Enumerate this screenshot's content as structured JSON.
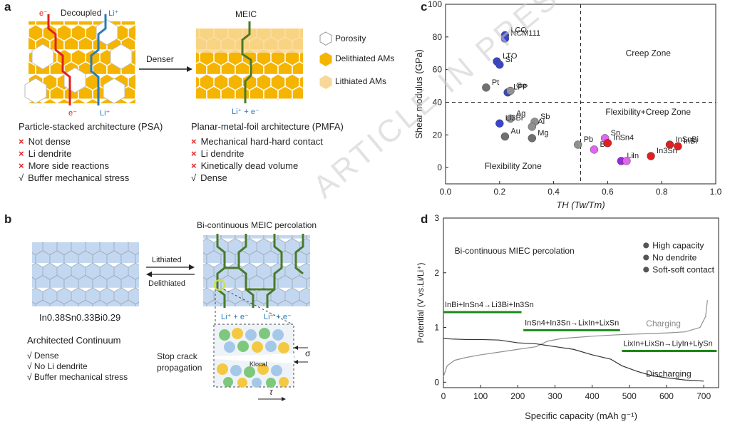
{
  "watermark": "ARTICLE IN PRESS",
  "panel_a": {
    "label": "a",
    "decoupled": "Decoupled",
    "e_top": "e⁻",
    "li_top": "Li⁺",
    "e_bottom": "e⁻",
    "li_bottom": "Li⁺",
    "arrow": "Denser",
    "meic": "MEIC",
    "bottom_flow": "Li⁺ + e⁻",
    "legend": [
      "Porosity",
      "Delithiated AMs",
      "Lithiated AMs"
    ],
    "psa_title": "Particle-stacked architecture (PSA)",
    "psa_items": [
      {
        "mark": "×",
        "text": "Not dense"
      },
      {
        "mark": "×",
        "text": "Li dendrite"
      },
      {
        "mark": "×",
        "text": "More side reactions"
      },
      {
        "mark": "√",
        "text": "Buffer mechanical stress"
      }
    ],
    "pmfa_title": "Planar-metal-foil architecture (PMFA)",
    "pmfa_items": [
      {
        "mark": "×",
        "text": "Mechanical hard-hard contact"
      },
      {
        "mark": "×",
        "text": "Li dendrite"
      },
      {
        "mark": "×",
        "text": "Kinetically dead volume"
      },
      {
        "mark": "√",
        "text": "Dense"
      }
    ]
  },
  "panel_b": {
    "label": "b",
    "formula": "In0.38Sn0.33Bi0.29",
    "lithiated": "Lithiated",
    "delithiated": "Delithiated",
    "percolation": "Bi-continuous MEIC percolation",
    "flow1": "Li⁺ + e⁻",
    "flow2": "Li⁺ + e⁻",
    "arch_title": "Architected Continuum",
    "items": [
      "√ Dense",
      "√ No Li dendrite",
      "√ Buffer mechanical stress"
    ],
    "stop_crack": "Stop crack propagation",
    "sigma": "σ",
    "tau": "τ",
    "klocal": "Klocal"
  },
  "panel_c": {
    "label": "c",
    "chart_data": {
      "type": "scatter",
      "xlabel": "TH (Tw/Tm)",
      "ylabel": "Shear modulus (GPa)",
      "xlim": [
        0.0,
        1.0
      ],
      "ylim": [
        -10,
        100
      ],
      "xticks": [
        "0.0",
        "0.2",
        "0.4",
        "0.6",
        "0.8",
        "1.0"
      ],
      "yticks": [
        "0",
        "20",
        "40",
        "60",
        "80",
        "100"
      ],
      "vline": 0.5,
      "hline": 40,
      "zones": [
        "Creep Zone",
        "Flexibility+Creep Zone",
        "Flexibility Zone"
      ],
      "points": [
        {
          "label": "LCO",
          "x": 0.22,
          "y": 81,
          "color": "#3a46c8"
        },
        {
          "label": "NCM111",
          "x": 0.22,
          "y": 79,
          "color": "#3a46c8"
        },
        {
          "label": "LTO",
          "x": 0.19,
          "y": 65,
          "color": "#3a46c8"
        },
        {
          "label": "Si",
          "x": 0.2,
          "y": 63,
          "color": "#3a46c8"
        },
        {
          "label": "LFP",
          "x": 0.23,
          "y": 46,
          "color": "#3a46c8"
        },
        {
          "label": "Pt",
          "x": 0.15,
          "y": 49,
          "color": "#707070"
        },
        {
          "label": "Ge",
          "x": 0.24,
          "y": 47,
          "color": "#909090"
        },
        {
          "label": "Ag",
          "x": 0.24,
          "y": 30,
          "color": "#909090"
        },
        {
          "label": "Li3Bi",
          "x": 0.2,
          "y": 27,
          "color": "#3a46c8"
        },
        {
          "label": "Au",
          "x": 0.22,
          "y": 19,
          "color": "#707070"
        },
        {
          "label": "Sb",
          "x": 0.33,
          "y": 28,
          "color": "#909090"
        },
        {
          "label": "Al",
          "x": 0.32,
          "y": 25,
          "color": "#909090"
        },
        {
          "label": "Mg",
          "x": 0.32,
          "y": 18,
          "color": "#707070"
        },
        {
          "label": "Pb",
          "x": 0.49,
          "y": 14,
          "color": "#909090"
        },
        {
          "label": "Bi",
          "x": 0.55,
          "y": 11,
          "color": "#e066f0"
        },
        {
          "label": "Sn",
          "x": 0.59,
          "y": 18,
          "color": "#e066f0"
        },
        {
          "label": "InSn4",
          "x": 0.6,
          "y": 15,
          "color": "#e02020"
        },
        {
          "label": "Li",
          "x": 0.65,
          "y": 4,
          "color": "#9a2ad8"
        },
        {
          "label": "In",
          "x": 0.67,
          "y": 4,
          "color": "#e066f0"
        },
        {
          "label": "In3Sn",
          "x": 0.76,
          "y": 7,
          "color": "#e02020"
        },
        {
          "label": "InSnBi",
          "x": 0.83,
          "y": 14,
          "color": "#e02020"
        },
        {
          "label": "InBi",
          "x": 0.86,
          "y": 13,
          "color": "#e02020"
        }
      ]
    }
  },
  "panel_d": {
    "label": "d",
    "chart_data": {
      "type": "line",
      "xlabel": "Specific capacity (mAh g⁻¹)",
      "ylabel": "Potential (V vs.Li/Li⁺)",
      "xlim": [
        0,
        740
      ],
      "ylim": [
        -0.1,
        3
      ],
      "xticks": [
        "0",
        "100",
        "200",
        "300",
        "400",
        "500",
        "600",
        "700"
      ],
      "yticks": [
        "0",
        "1",
        "2",
        "3"
      ],
      "title_text": "Bi-continuous MIEC percolation",
      "legend": [
        "High capacity",
        "No dendrite",
        "Soft-soft contact"
      ],
      "series": [
        {
          "name": "Charging",
          "color": "#909090",
          "x": [
            0,
            10,
            30,
            60,
            100,
            150,
            200,
            250,
            280,
            320,
            360,
            400,
            450,
            480,
            520,
            560,
            600,
            650,
            690,
            705,
            710
          ],
          "y": [
            0.1,
            0.3,
            0.4,
            0.45,
            0.5,
            0.55,
            0.6,
            0.65,
            0.75,
            0.8,
            0.82,
            0.84,
            0.86,
            0.87,
            0.88,
            0.89,
            0.9,
            0.92,
            1.0,
            1.2,
            1.5
          ]
        },
        {
          "name": "Discharging",
          "color": "#333333",
          "x": [
            0,
            20,
            60,
            100,
            150,
            200,
            250,
            300,
            350,
            400,
            450,
            480,
            520,
            560,
            600,
            650,
            700
          ],
          "y": [
            0.8,
            0.79,
            0.78,
            0.78,
            0.77,
            0.72,
            0.7,
            0.65,
            0.6,
            0.5,
            0.42,
            0.3,
            0.2,
            0.12,
            0.08,
            0.04,
            0.02
          ]
        }
      ],
      "plateaus": [
        {
          "label": "InBi+InSn4→Li3Bi+In3Sn",
          "x0": 0,
          "x1": 210,
          "y": 1.28
        },
        {
          "label": "InSn4+In3Sn→LixIn+LixSn",
          "x0": 215,
          "x1": 475,
          "y": 0.95
        },
        {
          "label": "LixIn+LixSn→LiyIn+LiySn",
          "x0": 480,
          "x1": 735,
          "y": 0.57
        }
      ]
    }
  }
}
